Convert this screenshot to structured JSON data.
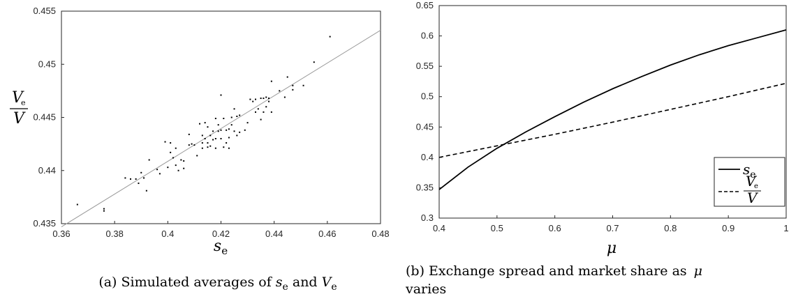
{
  "chart_data": [
    {
      "type": "scatter",
      "xlabel": "s_e",
      "ylabel": "V_e / V",
      "caption": "(a) Simulated averages of s_e and V_e",
      "xlim": [
        0.36,
        0.48
      ],
      "ylim": [
        0.435,
        0.455
      ],
      "xticks": [
        "0.36",
        "0.38",
        "0.4",
        "0.42",
        "0.44",
        "0.46",
        "0.48"
      ],
      "yticks": [
        "0.435",
        "0.44",
        "0.445",
        "0.45",
        "0.455"
      ],
      "fit_line": {
        "x": [
          0.36,
          0.48
        ],
        "y": [
          0.4347,
          0.4532
        ]
      },
      "points": [
        [
          0.366,
          0.4368
        ],
        [
          0.376,
          0.4364
        ],
        [
          0.376,
          0.4362
        ],
        [
          0.384,
          0.4393
        ],
        [
          0.386,
          0.4392
        ],
        [
          0.388,
          0.4392
        ],
        [
          0.389,
          0.4388
        ],
        [
          0.39,
          0.4398
        ],
        [
          0.391,
          0.4393
        ],
        [
          0.392,
          0.4381
        ],
        [
          0.393,
          0.441
        ],
        [
          0.396,
          0.4401
        ],
        [
          0.397,
          0.4397
        ],
        [
          0.399,
          0.4427
        ],
        [
          0.4,
          0.4403
        ],
        [
          0.401,
          0.4426
        ],
        [
          0.401,
          0.4417
        ],
        [
          0.402,
          0.4412
        ],
        [
          0.403,
          0.4421
        ],
        [
          0.403,
          0.4405
        ],
        [
          0.404,
          0.44
        ],
        [
          0.405,
          0.441
        ],
        [
          0.406,
          0.4402
        ],
        [
          0.406,
          0.4409
        ],
        [
          0.408,
          0.4424
        ],
        [
          0.408,
          0.4434
        ],
        [
          0.409,
          0.4425
        ],
        [
          0.41,
          0.4424
        ],
        [
          0.411,
          0.4414
        ],
        [
          0.412,
          0.4444
        ],
        [
          0.413,
          0.4433
        ],
        [
          0.413,
          0.4426
        ],
        [
          0.413,
          0.4421
        ],
        [
          0.414,
          0.4445
        ],
        [
          0.414,
          0.443
        ],
        [
          0.415,
          0.4441
        ],
        [
          0.415,
          0.4426
        ],
        [
          0.415,
          0.4422
        ],
        [
          0.416,
          0.4433
        ],
        [
          0.416,
          0.4423
        ],
        [
          0.417,
          0.4437
        ],
        [
          0.417,
          0.4429
        ],
        [
          0.418,
          0.4449
        ],
        [
          0.418,
          0.443
        ],
        [
          0.418,
          0.4421
        ],
        [
          0.419,
          0.4443
        ],
        [
          0.419,
          0.4437
        ],
        [
          0.42,
          0.4471
        ],
        [
          0.42,
          0.4438
        ],
        [
          0.42,
          0.443
        ],
        [
          0.421,
          0.4449
        ],
        [
          0.421,
          0.4422
        ],
        [
          0.422,
          0.4438
        ],
        [
          0.422,
          0.4426
        ],
        [
          0.423,
          0.4439
        ],
        [
          0.423,
          0.4431
        ],
        [
          0.423,
          0.4421
        ],
        [
          0.424,
          0.445
        ],
        [
          0.424,
          0.4443
        ],
        [
          0.425,
          0.4458
        ],
        [
          0.425,
          0.4437
        ],
        [
          0.426,
          0.4451
        ],
        [
          0.426,
          0.4433
        ],
        [
          0.427,
          0.4452
        ],
        [
          0.427,
          0.4436
        ],
        [
          0.429,
          0.4438
        ],
        [
          0.43,
          0.4445
        ],
        [
          0.431,
          0.4467
        ],
        [
          0.432,
          0.4465
        ],
        [
          0.433,
          0.4455
        ],
        [
          0.433,
          0.4467
        ],
        [
          0.434,
          0.4458
        ],
        [
          0.435,
          0.4468
        ],
        [
          0.435,
          0.4448
        ],
        [
          0.436,
          0.4468
        ],
        [
          0.436,
          0.4455
        ],
        [
          0.437,
          0.4469
        ],
        [
          0.437,
          0.446
        ],
        [
          0.438,
          0.4468
        ],
        [
          0.438,
          0.4465
        ],
        [
          0.439,
          0.4455
        ],
        [
          0.439,
          0.4484
        ],
        [
          0.442,
          0.4475
        ],
        [
          0.444,
          0.4469
        ],
        [
          0.445,
          0.4488
        ],
        [
          0.447,
          0.4476
        ],
        [
          0.447,
          0.448
        ],
        [
          0.451,
          0.448
        ],
        [
          0.455,
          0.4502
        ],
        [
          0.461,
          0.4526
        ]
      ]
    },
    {
      "type": "line",
      "xlabel": "μ",
      "caption_line1": "(b) Exchange spread and market share as",
      "caption_mu": "μ",
      "caption_line2": "varies",
      "xlim": [
        0.4,
        1
      ],
      "ylim": [
        0.3,
        0.65
      ],
      "xticks": [
        "0.4",
        "0.5",
        "0.6",
        "0.7",
        "0.8",
        "0.9",
        "1"
      ],
      "yticks": [
        "0.3",
        "0.35",
        "0.4",
        "0.45",
        "0.5",
        "0.55",
        "0.6",
        "0.65"
      ],
      "legend_position": "bottom-right",
      "series": [
        {
          "name": "s_e",
          "style": "solid",
          "x": [
            0.4,
            0.45,
            0.5,
            0.55,
            0.6,
            0.65,
            0.7,
            0.75,
            0.8,
            0.85,
            0.9,
            0.95,
            1.0
          ],
          "y": [
            0.347,
            0.384,
            0.415,
            0.442,
            0.467,
            0.491,
            0.513,
            0.533,
            0.552,
            0.569,
            0.584,
            0.597,
            0.61
          ]
        },
        {
          "name": "V_e / V",
          "style": "dashed",
          "x": [
            0.4,
            0.5,
            0.6,
            0.7,
            0.8,
            0.9,
            1.0
          ],
          "y": [
            0.4,
            0.419,
            0.438,
            0.458,
            0.479,
            0.5,
            0.522
          ]
        }
      ]
    }
  ]
}
